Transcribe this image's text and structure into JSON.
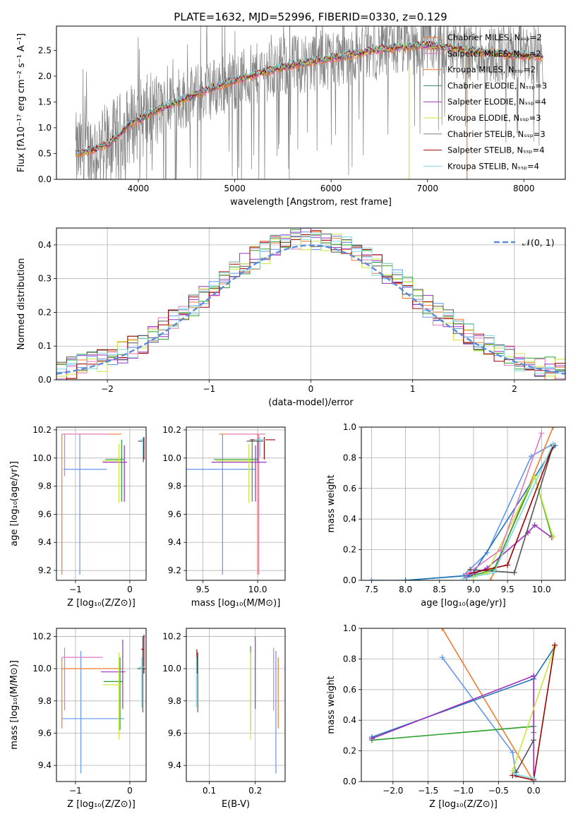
{
  "figure_title": "PLATE=1632, MJD=52996, FIBERID=0330, z=0.129",
  "colors": {
    "series": [
      "#6495ed",
      "#ed7d31",
      "#1f77b4",
      "#2ca02c",
      "#9b30c0",
      "#c8e63c",
      "#555555",
      "#a00000",
      "#7fd8e0",
      "#e377c2"
    ],
    "spectrum": [
      "#ed7d31",
      "#e377c2",
      "#ed7d31",
      "#2e8b57",
      "#9b30c0",
      "#c8e63c",
      "#808080",
      "#a00000",
      "#7fd8e0"
    ],
    "grid": "#b0b0b0",
    "gaussian": "#5b8bd9"
  },
  "chart_data": [
    {
      "type": "line",
      "panel": "spectrum",
      "title": "PLATE=1632, MJD=52996, FIBERID=0330, z=0.129",
      "xlabel": "wavelength [Angstrom, rest frame]",
      "ylabel": "Flux [fλ10⁻¹⁷ erg cm⁻² s⁻¹ A⁻¹]",
      "xlim": [
        3150,
        8430
      ],
      "ylim": [
        0,
        2.97
      ],
      "xticks": [
        "4000",
        "5000",
        "6000",
        "7000",
        "8000"
      ],
      "yticks": [
        "0.0",
        "0.5",
        "1.0",
        "1.5",
        "2.0",
        "2.5"
      ],
      "legend_position": "upper right",
      "series": [
        {
          "name": "Chabrier MILES, Nₛₛₚ=2"
        },
        {
          "name": "Salpeter MILES, Nₛₛₚ=2"
        },
        {
          "name": "Kroupa MILES, Nₛₛₚ=2"
        },
        {
          "name": "Chabrier ELODIE, Nₛₛₚ=3"
        },
        {
          "name": "Salpeter ELODIE, Nₛₛₚ=4"
        },
        {
          "name": "Kroupa ELODIE, Nₛₛₚ=3"
        },
        {
          "name": "Chabrier STELIB, Nₛₛₚ=3"
        },
        {
          "name": "Salpeter STELIB, Nₛₛₚ=4"
        },
        {
          "name": "Kroupa STELIB, Nₛₛₚ=4"
        }
      ],
      "continuum": {
        "x": [
          3350,
          3500,
          3700,
          3900,
          4000,
          4200,
          4400,
          4700,
          5000,
          5300,
          5600,
          6000,
          6300,
          6500,
          6800,
          7000,
          7200,
          7500,
          8000,
          8200
        ],
        "y": [
          0.5,
          0.55,
          0.7,
          1.05,
          1.15,
          1.35,
          1.5,
          1.72,
          1.92,
          2.08,
          2.22,
          2.35,
          2.45,
          2.52,
          2.58,
          2.6,
          2.57,
          2.48,
          2.4,
          2.38
        ]
      }
    },
    {
      "type": "step",
      "panel": "residual_histogram",
      "xlabel": "(data-model)/error",
      "ylabel": "Normed distribution",
      "xlim": [
        -2.5,
        2.5
      ],
      "ylim": [
        0,
        0.45
      ],
      "xticks": [
        "−2",
        "−1",
        "0",
        "1",
        "2"
      ],
      "yticks": [
        "0.0",
        "0.1",
        "0.2",
        "0.3",
        "0.4"
      ],
      "legend": [
        "𝒩(0, 1)"
      ],
      "legend_position": "upper right",
      "bin_width": 0.1,
      "envelope": "normal(0,1) pdf",
      "series_count": 9
    },
    {
      "type": "scatter",
      "panel": "age_vs_Z",
      "xlabel": "Z [log₁₀(Z/Z⊙)]",
      "ylabel": "age  [log₁₀(age/yr)]",
      "xlim": [
        -1.35,
        0.3
      ],
      "ylim": [
        9.13,
        10.22
      ],
      "xticks": [
        "−1",
        "0"
      ],
      "yticks": [
        "9.2",
        "9.4",
        "9.6",
        "9.8",
        "10.0",
        "10.2"
      ],
      "points": [
        {
          "x": -0.92,
          "y": 9.92,
          "xerr": [
            0.3,
            0.5
          ],
          "yerr": [
            0.75,
            0.25
          ]
        },
        {
          "x": -1.25,
          "y": 10.17,
          "xerr": [
            0.0,
            1.1
          ],
          "yerr": [
            1.0,
            0.0
          ]
        },
        {
          "x": -1.2,
          "y": 10.17,
          "xerr": [
            0.05,
            0.8
          ],
          "yerr": [
            0.3,
            0.0
          ]
        },
        {
          "x": -0.15,
          "y": 9.99,
          "xerr": [
            0.3,
            0.05
          ],
          "yerr": [
            0.3,
            0.14
          ]
        },
        {
          "x": -0.1,
          "y": 9.97,
          "xerr": [
            0.4,
            0.05
          ],
          "yerr": [
            0.28,
            0.12
          ]
        },
        {
          "x": -0.2,
          "y": 9.98,
          "xerr": [
            0.3,
            0.05
          ],
          "yerr": [
            0.3,
            0.12
          ]
        },
        {
          "x": 0.25,
          "y": 10.12,
          "xerr": [
            0.1,
            0.0
          ],
          "yerr": [
            0.15,
            0.02
          ]
        },
        {
          "x": 0.26,
          "y": 10.13,
          "xerr": [
            0.05,
            0.0
          ],
          "yerr": [
            0.14,
            0.02
          ]
        },
        {
          "x": 0.24,
          "y": 10.13,
          "xerr": [
            0.05,
            0.0
          ],
          "yerr": [
            0.12,
            0.02
          ]
        }
      ]
    },
    {
      "type": "scatter",
      "panel": "age_vs_mass",
      "xlabel": "mass [log₁₀(M/M⊙)]",
      "ylabel": "",
      "xlim": [
        9.35,
        10.25
      ],
      "ylim": [
        9.13,
        10.22
      ],
      "xticks": [
        "9.5",
        "10.0"
      ],
      "yticks": [
        "9.2",
        "9.4",
        "9.6",
        "9.8",
        "10.0",
        "10.2"
      ],
      "points": [
        {
          "x": 9.68,
          "y": 9.92,
          "xerr": [
            0.35,
            0.3
          ],
          "yerr": [
            0.75,
            0.25
          ]
        },
        {
          "x": 10.0,
          "y": 10.17,
          "xerr": [
            0.35,
            0.07
          ],
          "yerr": [
            1.0,
            0.0
          ]
        },
        {
          "x": 10.01,
          "y": 10.17,
          "xerr": [
            0.3,
            0.05
          ],
          "yerr": [
            1.0,
            0.0
          ]
        },
        {
          "x": 9.95,
          "y": 9.99,
          "xerr": [
            0.35,
            0.05
          ],
          "yerr": [
            0.3,
            0.14
          ]
        },
        {
          "x": 9.98,
          "y": 9.97,
          "xerr": [
            0.4,
            0.1
          ],
          "yerr": [
            0.28,
            0.12
          ]
        },
        {
          "x": 9.92,
          "y": 9.98,
          "xerr": [
            0.3,
            0.05
          ],
          "yerr": [
            0.3,
            0.12
          ]
        },
        {
          "x": 10.0,
          "y": 10.12,
          "xerr": [
            0.1,
            0.05
          ],
          "yerr": [
            0.15,
            0.02
          ]
        },
        {
          "x": 10.06,
          "y": 10.13,
          "xerr": [
            0.13,
            0.1
          ],
          "yerr": [
            0.14,
            0.02
          ]
        },
        {
          "x": 10.02,
          "y": 10.13,
          "xerr": [
            0.05,
            0.05
          ],
          "yerr": [
            0.12,
            0.02
          ]
        }
      ]
    },
    {
      "type": "line",
      "panel": "mass_weight_vs_age",
      "xlabel": "age  [log₁₀(age/yr)]",
      "ylabel": "mass weight",
      "xlim": [
        7.35,
        10.35
      ],
      "ylim": [
        0,
        1
      ],
      "xticks": [
        "7.5",
        "8.0",
        "8.5",
        "9.0",
        "9.5",
        "10.0"
      ],
      "yticks": [
        "0.0",
        "0.2",
        "0.4",
        "0.6",
        "0.8",
        "1.0"
      ],
      "series": [
        {
          "x": [
            7.5,
            8.0,
            8.85,
            9.2,
            9.85,
            10.17
          ],
          "y": [
            0.0,
            0.0,
            0.03,
            0.18,
            0.81,
            0.89
          ]
        },
        {
          "x": [
            9.25,
            10.17
          ],
          "y": [
            0.0,
            1.0
          ]
        },
        {
          "x": [
            8.0,
            8.9,
            9.0,
            10.2
          ],
          "y": [
            0.0,
            0.03,
            0.05,
            0.88
          ]
        },
        {
          "x": [
            8.9,
            9.3,
            9.9,
            10.15
          ],
          "y": [
            0.02,
            0.07,
            0.68,
            0.29
          ]
        },
        {
          "x": [
            8.9,
            9.2,
            9.8,
            9.9,
            10.15
          ],
          "y": [
            0.02,
            0.08,
            0.31,
            0.36,
            0.28
          ]
        },
        {
          "x": [
            9.0,
            9.2,
            9.9,
            10.17
          ],
          "y": [
            0.02,
            0.05,
            0.68,
            0.28
          ]
        },
        {
          "x": [
            8.95,
            9.6,
            10.17
          ],
          "y": [
            0.07,
            0.05,
            0.88
          ]
        },
        {
          "x": [
            8.9,
            9.5,
            10.17
          ],
          "y": [
            0.04,
            0.1,
            0.88
          ]
        },
        {
          "x": [
            8.85,
            9.3,
            10.17
          ],
          "y": [
            0.01,
            0.05,
            0.89
          ]
        },
        {
          "x": [
            8.9,
            9.4,
            10.0
          ],
          "y": [
            0.04,
            0.2,
            0.96
          ]
        }
      ]
    },
    {
      "type": "scatter",
      "panel": "mass_vs_Z",
      "xlabel": "Z [log₁₀(Z/Z⊙)]",
      "ylabel": "mass [log₁₀(M/M⊙)]",
      "xlim": [
        -1.35,
        0.3
      ],
      "ylim": [
        9.3,
        10.25
      ],
      "xticks": [
        "−1",
        "0"
      ],
      "yticks": [
        "9.4",
        "9.6",
        "9.8",
        "10.0",
        "10.2"
      ],
      "points": [
        {
          "x": -0.9,
          "y": 9.69,
          "xerr": [
            0.35,
            0.8
          ],
          "yerr": [
            0.34,
            0.42
          ]
        },
        {
          "x": -1.25,
          "y": 10.0,
          "xerr": [
            0.0,
            1.1
          ],
          "yerr": [
            0.37,
            0.07
          ]
        },
        {
          "x": -1.2,
          "y": 10.07,
          "xerr": [
            0.05,
            0.7
          ],
          "yerr": [
            0.33,
            0.06
          ]
        },
        {
          "x": -0.18,
          "y": 9.92,
          "xerr": [
            0.3,
            0.05
          ],
          "yerr": [
            0.3,
            0.15
          ]
        },
        {
          "x": -0.13,
          "y": 9.98,
          "xerr": [
            0.4,
            0.05
          ],
          "yerr": [
            0.23,
            0.2
          ]
        },
        {
          "x": -0.2,
          "y": 9.9,
          "xerr": [
            0.3,
            0.05
          ],
          "yerr": [
            0.34,
            0.2
          ]
        },
        {
          "x": 0.24,
          "y": 10.0,
          "xerr": [
            0.1,
            0.05
          ],
          "yerr": [
            0.27,
            0.2
          ]
        },
        {
          "x": 0.26,
          "y": 10.12,
          "xerr": [
            0.05,
            0.0
          ],
          "yerr": [
            0.15,
            0.09
          ]
        },
        {
          "x": 0.22,
          "y": 10.01,
          "xerr": [
            0.05,
            0.05
          ],
          "yerr": [
            0.25,
            0.06
          ]
        }
      ]
    },
    {
      "type": "scatter",
      "panel": "mass_vs_EBV",
      "xlabel": "E(B-V)",
      "ylabel": "",
      "xlim": [
        0.05,
        0.265
      ],
      "ylim": [
        9.3,
        10.25
      ],
      "xticks": [
        "0.1",
        "0.2"
      ],
      "yticks": [
        "9.4",
        "9.6",
        "9.8",
        "10.0",
        "10.2"
      ],
      "points": [
        {
          "x": 0.245,
          "y": 9.69,
          "yerr": [
            0.34,
            0.42
          ]
        },
        {
          "x": 0.25,
          "y": 10.0,
          "yerr": [
            0.37,
            0.07
          ]
        },
        {
          "x": 0.24,
          "y": 10.07,
          "yerr": [
            0.33,
            0.06
          ]
        },
        {
          "x": 0.19,
          "y": 9.92,
          "yerr": [
            0.3,
            0.22
          ]
        },
        {
          "x": 0.2,
          "y": 9.98,
          "yerr": [
            0.23,
            0.22
          ]
        },
        {
          "x": 0.19,
          "y": 9.9,
          "yerr": [
            0.34,
            0.2
          ]
        },
        {
          "x": 0.075,
          "y": 10.0,
          "yerr": [
            0.27,
            0.1
          ]
        },
        {
          "x": 0.073,
          "y": 10.12,
          "yerr": [
            0.15,
            0.0
          ]
        },
        {
          "x": 0.072,
          "y": 10.01,
          "yerr": [
            0.25,
            0.06
          ]
        }
      ]
    },
    {
      "type": "line",
      "panel": "mass_weight_vs_Z",
      "xlabel": "Z [log₁₀(Z/Z⊙)]",
      "ylabel": "mass weight",
      "xlim": [
        -2.45,
        0.45
      ],
      "ylim": [
        0,
        1
      ],
      "xticks": [
        "−2.0",
        "−1.5",
        "−1.0",
        "−0.5",
        "0.0"
      ],
      "yticks": [
        "0.0",
        "0.2",
        "0.4",
        "0.6",
        "0.8",
        "1.0"
      ],
      "series": [
        {
          "x": [
            -1.3,
            -0.3,
            -0.25
          ],
          "y": [
            0.81,
            0.19,
            0.04
          ]
        },
        {
          "x": [
            -1.3,
            0.0
          ],
          "y": [
            1.0,
            0.0
          ]
        },
        {
          "x": [
            -2.3,
            0.0,
            0.3
          ],
          "y": [
            0.29,
            0.67,
            0.88
          ]
        },
        {
          "x": [
            -2.3,
            0.0,
            0.0
          ],
          "y": [
            0.27,
            0.36,
            0.32
          ]
        },
        {
          "x": [
            -2.3,
            0.0,
            0.0
          ],
          "y": [
            0.28,
            0.69,
            0.02
          ]
        },
        {
          "x": [
            -0.3,
            0.3
          ],
          "y": [
            0.07,
            0.88
          ]
        },
        {
          "x": [
            -0.25,
            0.0
          ],
          "y": [
            0.06,
            0.27
          ]
        },
        {
          "x": [
            -0.3,
            0.0,
            0.3
          ],
          "y": [
            0.04,
            0.01,
            0.89
          ]
        },
        {
          "x": [
            -0.28,
            0.0
          ],
          "y": [
            0.05,
            0.02
          ]
        }
      ]
    }
  ]
}
